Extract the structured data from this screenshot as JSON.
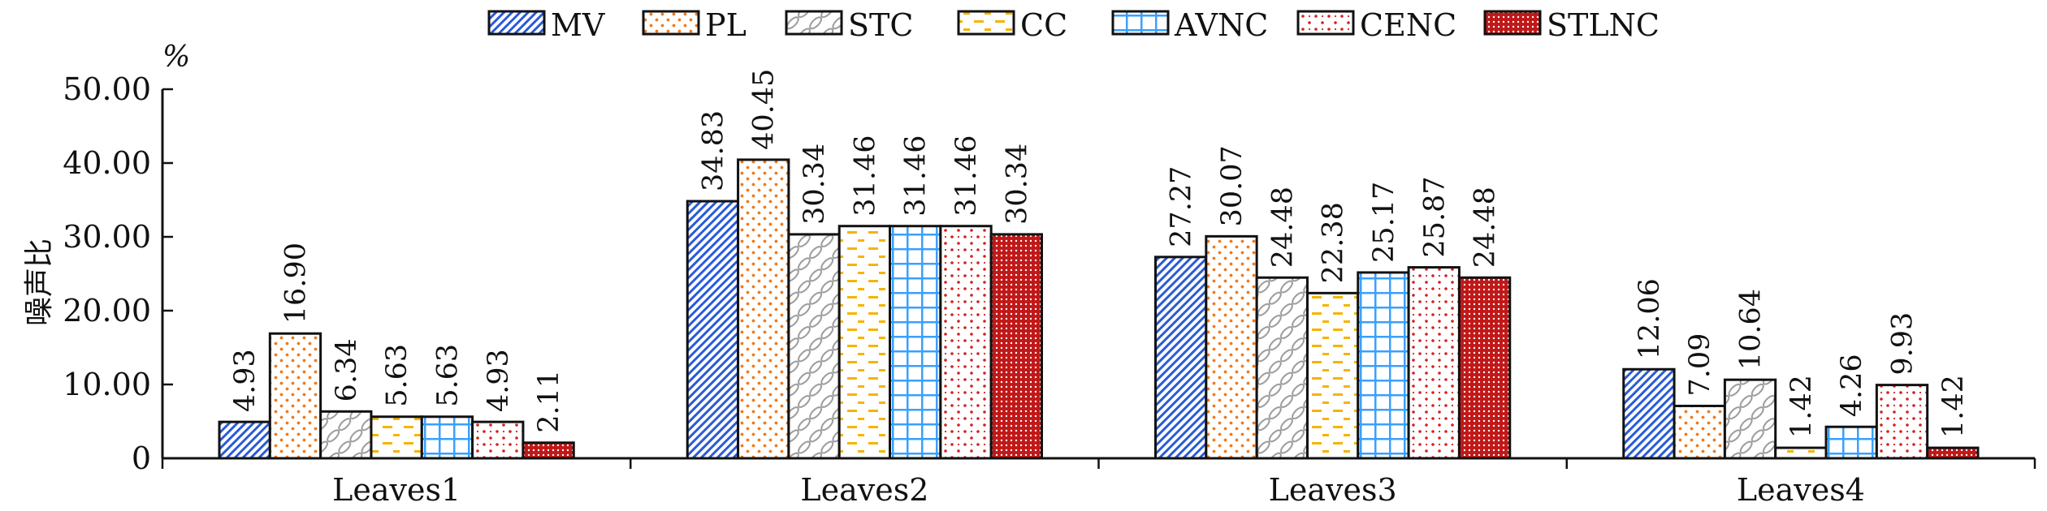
{
  "chart_data": {
    "type": "bar",
    "unit": "%",
    "ylabel": "噪声比",
    "ylim": [
      0,
      50
    ],
    "y_ticks": [
      "0",
      "10.00",
      "20.00",
      "30.00",
      "40.00",
      "50.00"
    ],
    "grid": false,
    "legend_position": "top-center",
    "categories": [
      "Leaves1",
      "Leaves2",
      "Leaves3",
      "Leaves4"
    ],
    "series": [
      {
        "name": "MV",
        "values": [
          4.93,
          34.83,
          27.27,
          12.06
        ],
        "labels": [
          "4.93",
          "34.83",
          "27.27",
          "12.06"
        ],
        "color": "#2a5bd7",
        "pattern": "diagonal-hatch"
      },
      {
        "name": "PL",
        "values": [
          16.9,
          40.45,
          30.07,
          7.09
        ],
        "labels": [
          "16.90",
          "40.45",
          "30.07",
          "7.09"
        ],
        "color": "#f07a1c",
        "pattern": "dots"
      },
      {
        "name": "STC",
        "values": [
          6.34,
          30.34,
          24.48,
          10.64
        ],
        "labels": [
          "6.34",
          "30.34",
          "24.48",
          "10.64"
        ],
        "color": "#9a9a9a",
        "pattern": "chain"
      },
      {
        "name": "CC",
        "values": [
          5.63,
          31.46,
          22.38,
          1.42
        ],
        "labels": [
          "5.63",
          "31.46",
          "22.38",
          "1.42"
        ],
        "color": "#f5b400",
        "pattern": "dashes"
      },
      {
        "name": "AVNC",
        "values": [
          5.63,
          31.46,
          25.17,
          4.26
        ],
        "labels": [
          "5.63",
          "31.46",
          "25.17",
          "4.26"
        ],
        "color": "#3aa0ff",
        "pattern": "grid"
      },
      {
        "name": "CENC",
        "values": [
          4.93,
          31.46,
          25.87,
          9.93
        ],
        "labels": [
          "4.93",
          "31.46",
          "25.87",
          "9.93"
        ],
        "color": "#d42020",
        "pattern": "sparse-dots"
      },
      {
        "name": "STLNC",
        "values": [
          2.11,
          30.34,
          24.48,
          1.42
        ],
        "labels": [
          "2.11",
          "30.34",
          "24.48",
          "1.42"
        ],
        "color": "#c01818",
        "pattern": "dense-dots"
      }
    ]
  }
}
